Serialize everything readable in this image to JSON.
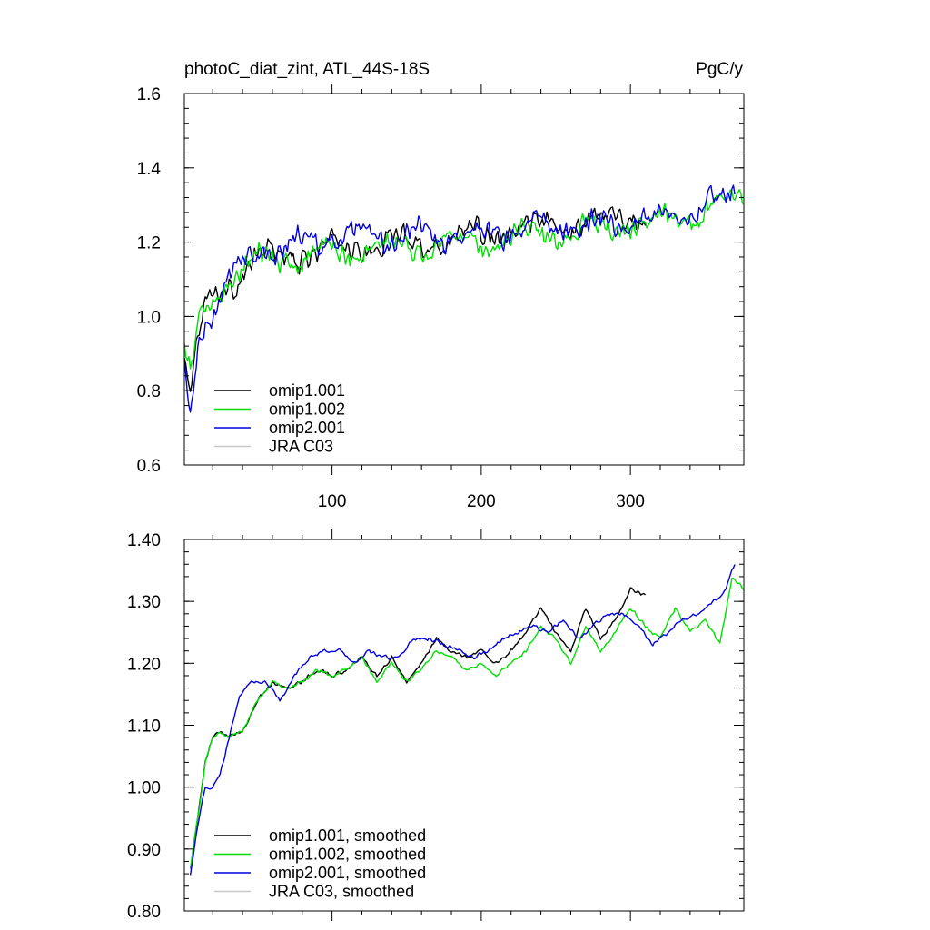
{
  "chart_data": [
    {
      "type": "line",
      "title": "photoC_diat_zint, ATL_44S-18S",
      "units": "PgC/y",
      "xlim": [
        1,
        376
      ],
      "ylim": [
        0.6,
        1.6
      ],
      "x_ticks": [
        100,
        200,
        300
      ],
      "x_tick_labels": [
        "100",
        "200",
        "300"
      ],
      "y_ticks": [
        0.6,
        0.8,
        1.0,
        1.2,
        1.4,
        1.6
      ],
      "y_tick_labels": [
        "0.6",
        "0.8",
        "1.0",
        "1.2",
        "1.4",
        "1.6"
      ],
      "legend_position": "bottom-left",
      "series": [
        {
          "name": "omip1.001",
          "color": "#000000",
          "x_end": 310,
          "anchors": [
            [
              1,
              0.88
            ],
            [
              5,
              0.8
            ],
            [
              10,
              0.93
            ],
            [
              15,
              1.03
            ],
            [
              20,
              1.06
            ],
            [
              30,
              1.09
            ],
            [
              40,
              1.12
            ],
            [
              50,
              1.15
            ],
            [
              60,
              1.16
            ],
            [
              80,
              1.17
            ],
            [
              100,
              1.18
            ],
            [
              120,
              1.19
            ],
            [
              140,
              1.2
            ],
            [
              160,
              1.2
            ],
            [
              180,
              1.21
            ],
            [
              200,
              1.22
            ],
            [
              220,
              1.23
            ],
            [
              240,
              1.24
            ],
            [
              260,
              1.25
            ],
            [
              280,
              1.26
            ],
            [
              300,
              1.28
            ],
            [
              310,
              1.27
            ]
          ],
          "noise": 0.035,
          "osc_amp": 0.025,
          "osc_period": 45
        },
        {
          "name": "omip1.002",
          "color": "#00e000",
          "x_end": 376,
          "anchors": [
            [
              1,
              0.9
            ],
            [
              5,
              0.82
            ],
            [
              10,
              0.95
            ],
            [
              15,
              1.04
            ],
            [
              20,
              1.07
            ],
            [
              30,
              1.09
            ],
            [
              40,
              1.12
            ],
            [
              50,
              1.15
            ],
            [
              60,
              1.16
            ],
            [
              80,
              1.16
            ],
            [
              100,
              1.17
            ],
            [
              120,
              1.18
            ],
            [
              140,
              1.19
            ],
            [
              160,
              1.19
            ],
            [
              180,
              1.2
            ],
            [
              200,
              1.2
            ],
            [
              220,
              1.21
            ],
            [
              240,
              1.22
            ],
            [
              260,
              1.23
            ],
            [
              280,
              1.23
            ],
            [
              300,
              1.25
            ],
            [
              320,
              1.26
            ],
            [
              340,
              1.27
            ],
            [
              360,
              1.3
            ],
            [
              376,
              1.32
            ]
          ],
          "noise": 0.035,
          "osc_amp": 0.025,
          "osc_period": 45
        },
        {
          "name": "omip2.001",
          "color": "#0000e0",
          "x_end": 370,
          "anchors": [
            [
              1,
              0.86
            ],
            [
              3,
              0.78
            ],
            [
              5,
              0.72
            ],
            [
              10,
              0.92
            ],
            [
              15,
              0.99
            ],
            [
              20,
              1.01
            ],
            [
              30,
              1.08
            ],
            [
              40,
              1.15
            ],
            [
              50,
              1.17
            ],
            [
              60,
              1.18
            ],
            [
              80,
              1.2
            ],
            [
              100,
              1.21
            ],
            [
              120,
              1.21
            ],
            [
              140,
              1.21
            ],
            [
              160,
              1.22
            ],
            [
              180,
              1.22
            ],
            [
              200,
              1.22
            ],
            [
              220,
              1.23
            ],
            [
              240,
              1.24
            ],
            [
              260,
              1.24
            ],
            [
              280,
              1.25
            ],
            [
              300,
              1.26
            ],
            [
              320,
              1.27
            ],
            [
              340,
              1.29
            ],
            [
              360,
              1.31
            ],
            [
              370,
              1.35
            ]
          ],
          "noise": 0.035,
          "osc_amp": 0.02,
          "osc_period": 40
        },
        {
          "name": "JRA C03",
          "color": "#c8c8c8",
          "x_end": 0,
          "anchors": [],
          "noise": 0,
          "osc_amp": 0,
          "osc_period": 1
        }
      ]
    },
    {
      "type": "line",
      "title": "",
      "xlim": [
        1,
        376
      ],
      "ylim": [
        0.8,
        1.4
      ],
      "x_ticks": [
        100,
        200,
        300
      ],
      "y_ticks": [
        0.8,
        0.9,
        1.0,
        1.1,
        1.2,
        1.3,
        1.4
      ],
      "y_tick_labels": [
        "0.80",
        "0.90",
        "1.00",
        "1.10",
        "1.20",
        "1.30",
        "1.40"
      ],
      "legend_position": "bottom-left",
      "series": [
        {
          "name": "omip1.001, smoothed",
          "color": "#000000",
          "x_end": 310,
          "anchors": [
            [
              5,
              0.87
            ],
            [
              10,
              0.95
            ],
            [
              15,
              1.04
            ],
            [
              20,
              1.08
            ],
            [
              25,
              1.09
            ],
            [
              30,
              1.08
            ],
            [
              40,
              1.09
            ],
            [
              50,
              1.14
            ],
            [
              60,
              1.17
            ],
            [
              70,
              1.16
            ],
            [
              80,
              1.17
            ],
            [
              90,
              1.19
            ],
            [
              100,
              1.18
            ],
            [
              110,
              1.19
            ],
            [
              120,
              1.21
            ],
            [
              130,
              1.18
            ],
            [
              140,
              1.21
            ],
            [
              150,
              1.17
            ],
            [
              160,
              1.2
            ],
            [
              170,
              1.24
            ],
            [
              180,
              1.22
            ],
            [
              190,
              1.21
            ],
            [
              200,
              1.22
            ],
            [
              210,
              1.2
            ],
            [
              220,
              1.22
            ],
            [
              230,
              1.25
            ],
            [
              240,
              1.29
            ],
            [
              250,
              1.25
            ],
            [
              260,
              1.22
            ],
            [
              270,
              1.29
            ],
            [
              280,
              1.24
            ],
            [
              290,
              1.27
            ],
            [
              300,
              1.32
            ],
            [
              310,
              1.31
            ]
          ],
          "noise": 0.004,
          "osc_amp": 0,
          "osc_period": 40
        },
        {
          "name": "omip1.002, smoothed",
          "color": "#00e000",
          "x_end": 376,
          "anchors": [
            [
              5,
              0.87
            ],
            [
              10,
              0.95
            ],
            [
              15,
              1.04
            ],
            [
              20,
              1.08
            ],
            [
              25,
              1.09
            ],
            [
              30,
              1.08
            ],
            [
              40,
              1.09
            ],
            [
              50,
              1.14
            ],
            [
              60,
              1.17
            ],
            [
              70,
              1.16
            ],
            [
              80,
              1.17
            ],
            [
              90,
              1.19
            ],
            [
              100,
              1.18
            ],
            [
              110,
              1.19
            ],
            [
              120,
              1.21
            ],
            [
              130,
              1.17
            ],
            [
              140,
              1.2
            ],
            [
              150,
              1.17
            ],
            [
              160,
              1.19
            ],
            [
              170,
              1.22
            ],
            [
              180,
              1.21
            ],
            [
              190,
              1.19
            ],
            [
              200,
              1.2
            ],
            [
              210,
              1.18
            ],
            [
              220,
              1.2
            ],
            [
              230,
              1.22
            ],
            [
              240,
              1.26
            ],
            [
              250,
              1.24
            ],
            [
              260,
              1.2
            ],
            [
              270,
              1.26
            ],
            [
              280,
              1.22
            ],
            [
              290,
              1.25
            ],
            [
              300,
              1.29
            ],
            [
              310,
              1.26
            ],
            [
              320,
              1.24
            ],
            [
              330,
              1.29
            ],
            [
              340,
              1.25
            ],
            [
              350,
              1.27
            ],
            [
              360,
              1.23
            ],
            [
              368,
              1.34
            ],
            [
              376,
              1.32
            ]
          ],
          "noise": 0.004,
          "osc_amp": 0,
          "osc_period": 40
        },
        {
          "name": "omip2.001, smoothed",
          "color": "#0000e0",
          "x_end": 370,
          "anchors": [
            [
              5,
              0.86
            ],
            [
              10,
              0.94
            ],
            [
              15,
              1.0
            ],
            [
              20,
              1.0
            ],
            [
              25,
              1.02
            ],
            [
              30,
              1.07
            ],
            [
              38,
              1.15
            ],
            [
              45,
              1.17
            ],
            [
              55,
              1.17
            ],
            [
              65,
              1.14
            ],
            [
              75,
              1.18
            ],
            [
              85,
              1.21
            ],
            [
              95,
              1.22
            ],
            [
              105,
              1.22
            ],
            [
              115,
              1.2
            ],
            [
              125,
              1.22
            ],
            [
              135,
              1.21
            ],
            [
              145,
              1.21
            ],
            [
              155,
              1.24
            ],
            [
              165,
              1.24
            ],
            [
              175,
              1.23
            ],
            [
              185,
              1.22
            ],
            [
              195,
              1.21
            ],
            [
              205,
              1.22
            ],
            [
              215,
              1.24
            ],
            [
              225,
              1.25
            ],
            [
              235,
              1.26
            ],
            [
              245,
              1.25
            ],
            [
              255,
              1.27
            ],
            [
              265,
              1.24
            ],
            [
              275,
              1.26
            ],
            [
              285,
              1.28
            ],
            [
              295,
              1.28
            ],
            [
              305,
              1.26
            ],
            [
              315,
              1.23
            ],
            [
              325,
              1.25
            ],
            [
              335,
              1.27
            ],
            [
              345,
              1.28
            ],
            [
              355,
              1.3
            ],
            [
              362,
              1.31
            ],
            [
              370,
              1.36
            ]
          ],
          "noise": 0.004,
          "osc_amp": 0,
          "osc_period": 40
        },
        {
          "name": "JRA C03, smoothed",
          "color": "#c8c8c8",
          "x_end": 0,
          "anchors": [],
          "noise": 0,
          "osc_amp": 0,
          "osc_period": 1
        }
      ]
    }
  ]
}
